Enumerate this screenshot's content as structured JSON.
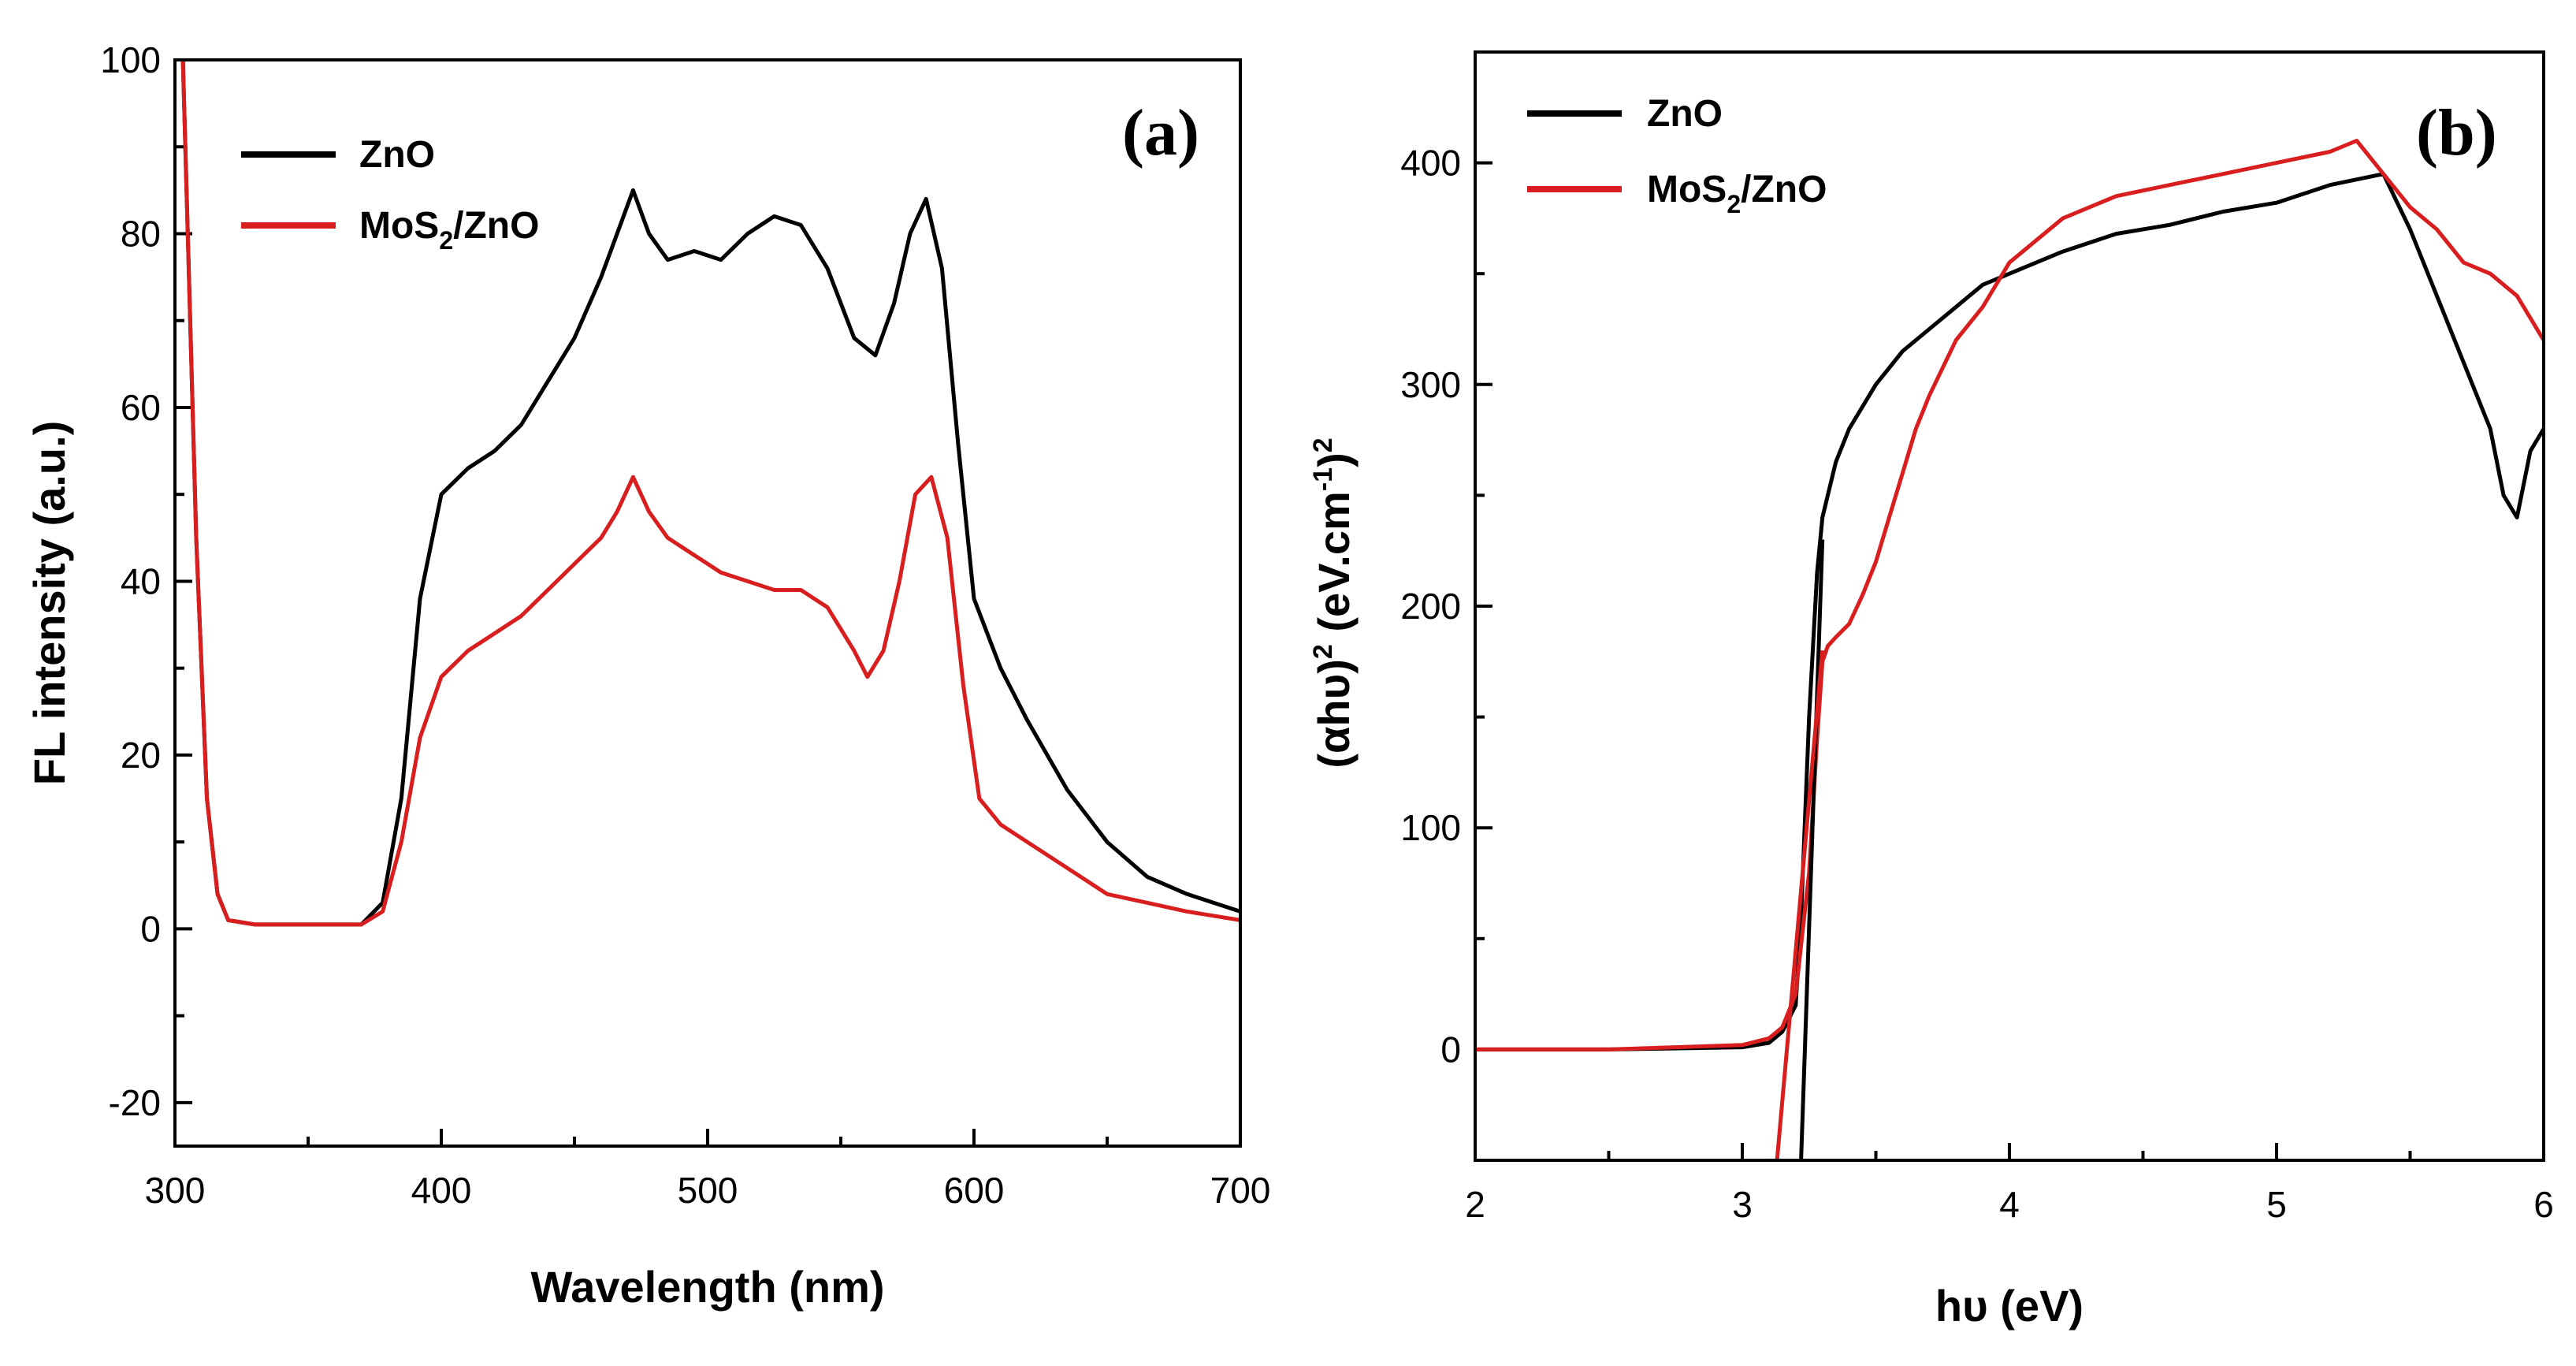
{
  "chart_data": [
    {
      "type": "line",
      "panel_label": "(a)",
      "xlabel": "Wavelength (nm)",
      "ylabel": "FL intensity (a.u.)",
      "xlim": [
        300,
        700
      ],
      "ylim": [
        -25,
        100
      ],
      "x_ticks": [
        300,
        400,
        500,
        600,
        700
      ],
      "y_ticks": [
        -20,
        0,
        20,
        40,
        60,
        80,
        100
      ],
      "legend": {
        "position": "top-left",
        "entries": [
          {
            "label": "ZnO",
            "color": "#000000"
          },
          {
            "label_main": "MoS",
            "label_sub": "2",
            "label_rest": "/ZnO",
            "color": "#d81e1e"
          }
        ]
      },
      "series": [
        {
          "name": "ZnO",
          "color": "#000000",
          "x": [
            303,
            305,
            308,
            312,
            316,
            320,
            330,
            350,
            370,
            378,
            385,
            392,
            400,
            410,
            420,
            430,
            440,
            450,
            460,
            466,
            472,
            478,
            485,
            495,
            505,
            515,
            525,
            535,
            545,
            555,
            563,
            570,
            576,
            582,
            588,
            594,
            600,
            610,
            620,
            635,
            650,
            665,
            680,
            700
          ],
          "y": [
            100,
            78,
            45,
            15,
            4,
            1,
            0.5,
            0.5,
            0.5,
            3,
            15,
            38,
            50,
            53,
            55,
            58,
            63,
            68,
            75,
            80,
            85,
            80,
            77,
            78,
            77,
            80,
            82,
            81,
            76,
            68,
            66,
            72,
            80,
            84,
            76,
            56,
            38,
            30,
            24,
            16,
            10,
            6,
            4,
            2
          ]
        },
        {
          "name": "MoS2/ZnO",
          "color": "#d81e1e",
          "x": [
            303,
            305,
            308,
            312,
            316,
            320,
            330,
            350,
            370,
            378,
            385,
            392,
            400,
            410,
            420,
            430,
            440,
            450,
            460,
            466,
            472,
            478,
            485,
            495,
            505,
            515,
            525,
            535,
            545,
            555,
            560,
            566,
            572,
            578,
            584,
            590,
            596,
            602,
            610,
            620,
            635,
            650,
            665,
            680,
            700
          ],
          "y": [
            100,
            78,
            45,
            15,
            4,
            1,
            0.5,
            0.5,
            0.5,
            2,
            10,
            22,
            29,
            32,
            34,
            36,
            39,
            42,
            45,
            48,
            52,
            48,
            45,
            43,
            41,
            40,
            39,
            39,
            37,
            32,
            29,
            32,
            40,
            50,
            52,
            45,
            28,
            15,
            12,
            10,
            7,
            4,
            3,
            2,
            1
          ]
        }
      ]
    },
    {
      "type": "line",
      "panel_label": "(b)",
      "xlabel": "hυ (eV)",
      "ylabel_main": "(αhυ)",
      "ylabel_sup1": "2",
      "ylabel_mid": " (eV.cm",
      "ylabel_sup2": "-1",
      "ylabel_end": ")",
      "ylabel_sup3": "2",
      "xlim": [
        2,
        6
      ],
      "ylim": [
        -50,
        450
      ],
      "x_ticks": [
        2,
        3,
        4,
        5,
        6
      ],
      "y_ticks": [
        0,
        100,
        200,
        300,
        400
      ],
      "legend": {
        "position": "top-left",
        "entries": [
          {
            "label": "ZnO",
            "color": "#000000"
          },
          {
            "label_main": "MoS",
            "label_sub": "2",
            "label_rest": "/ZnO",
            "color": "#d81e1e"
          }
        ]
      },
      "series": [
        {
          "name": "ZnO",
          "color": "#000000",
          "x": [
            2.0,
            2.5,
            3.0,
            3.1,
            3.15,
            3.2,
            3.22,
            3.25,
            3.28,
            3.3,
            3.35,
            3.4,
            3.5,
            3.6,
            3.7,
            3.8,
            3.9,
            4.0,
            4.2,
            4.4,
            4.6,
            4.8,
            5.0,
            5.2,
            5.4,
            5.5,
            5.6,
            5.7,
            5.8,
            5.85,
            5.9,
            5.95,
            6.0
          ],
          "y": [
            0,
            0,
            1,
            3,
            8,
            20,
            60,
            150,
            215,
            240,
            265,
            280,
            300,
            315,
            325,
            335,
            345,
            350,
            360,
            368,
            372,
            378,
            382,
            390,
            395,
            370,
            340,
            310,
            280,
            250,
            240,
            270,
            280
          ]
        },
        {
          "name": "MoS2/ZnO",
          "color": "#d81e1e",
          "x": [
            2.0,
            2.5,
            3.0,
            3.1,
            3.15,
            3.2,
            3.25,
            3.28,
            3.3,
            3.32,
            3.35,
            3.4,
            3.45,
            3.5,
            3.55,
            3.6,
            3.65,
            3.7,
            3.8,
            3.9,
            4.0,
            4.2,
            4.4,
            4.6,
            4.8,
            5.0,
            5.2,
            5.3,
            5.4,
            5.5,
            5.6,
            5.7,
            5.8,
            5.9,
            6.0
          ],
          "y": [
            0,
            0,
            2,
            5,
            10,
            25,
            80,
            140,
            175,
            182,
            186,
            192,
            205,
            220,
            240,
            260,
            280,
            295,
            320,
            335,
            355,
            375,
            385,
            390,
            395,
            400,
            405,
            410,
            395,
            380,
            370,
            355,
            350,
            340,
            320
          ]
        },
        {
          "name": "ZnO-fit",
          "color": "#000000",
          "x": [
            3.22,
            3.3
          ],
          "y": [
            -50,
            230
          ]
        },
        {
          "name": "MoS2/ZnO-fit",
          "color": "#d81e1e",
          "x": [
            3.13,
            3.3
          ],
          "y": [
            -50,
            180
          ]
        }
      ]
    }
  ]
}
